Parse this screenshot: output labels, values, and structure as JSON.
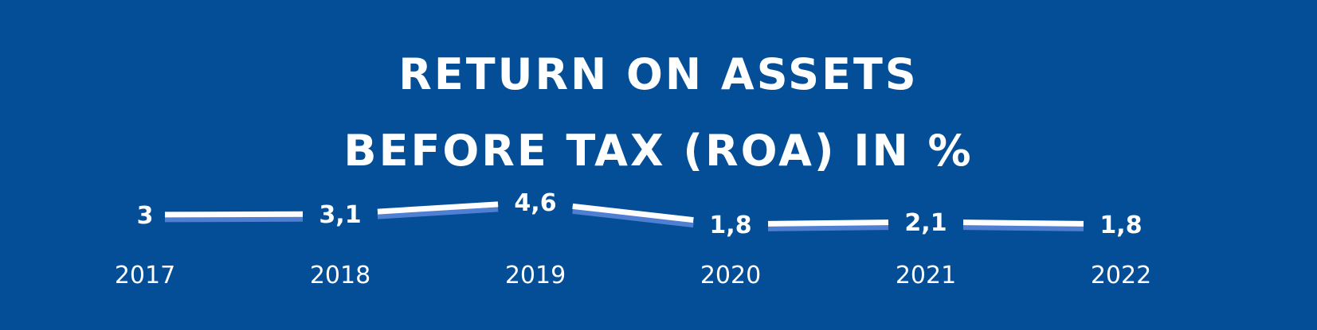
{
  "colors": {
    "background": "#034e97",
    "line": "#ffffff",
    "line_shadow": "#4f7fd3",
    "text": "#ffffff"
  },
  "chart_data": {
    "type": "line",
    "title_lines": [
      "RETURN ON ASSETS",
      "BEFORE TAX (ROA) IN %"
    ],
    "categories": [
      "2017",
      "2018",
      "2019",
      "2020",
      "2021",
      "2022"
    ],
    "series": [
      {
        "values": [
          3,
          3.1,
          4.6,
          1.8,
          2.1,
          1.8
        ],
        "labels": [
          "3",
          "3,1",
          "4,6",
          "1,8",
          "2,1",
          "1,8"
        ]
      }
    ],
    "grid": false,
    "legend": "none",
    "data_labels": true
  }
}
